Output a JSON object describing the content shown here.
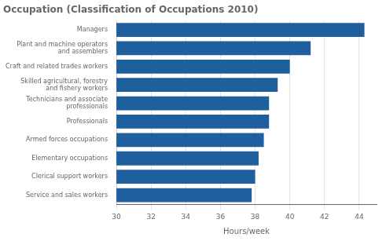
{
  "chart_data": {
    "type": "bar",
    "orientation": "horizontal",
    "title": "Occupation (Classification of Occupations 2010)",
    "categories": [
      "Service and sales workers",
      "Clerical support workers",
      "Elementary occupations",
      "Armed forces occupations",
      "Professionals",
      "Technicians and associate\nprofessionals",
      "Skilled agricultural, forestry\nand fishery workers",
      "Craft and related trades workers",
      "Plant and machine operators\nand assemblers",
      "Managers"
    ],
    "values": [
      37.8,
      38.0,
      38.2,
      38.5,
      38.8,
      38.8,
      39.3,
      40.0,
      41.2,
      44.3
    ],
    "color": "#1F5F9E",
    "xlabel": "Hours/week",
    "xlim": [
      30,
      45
    ],
    "xticks": [
      30,
      32,
      34,
      36,
      38,
      40,
      42,
      44
    ],
    "grid": true
  }
}
